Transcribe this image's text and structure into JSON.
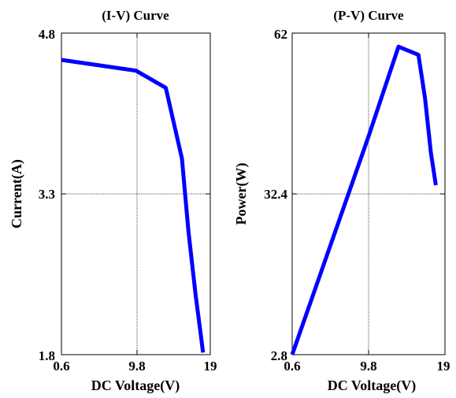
{
  "chart_data": [
    {
      "type": "line",
      "title": "(I-V) Curve",
      "xlabel": "DC Voltage(V)",
      "ylabel": "Current(A)",
      "xlim": [
        0.6,
        19
      ],
      "ylim": [
        1.8,
        4.8
      ],
      "xticks": [
        "0.6",
        "9.8",
        "19"
      ],
      "yticks": [
        "1.8",
        "3.3",
        "4.8"
      ],
      "grid": true,
      "line_color": "#0000ff",
      "series": [
        {
          "x": [
            0.6,
            9.8,
            13.5,
            15.5,
            16.3,
            17.2,
            17.8,
            18.1
          ],
          "y": [
            4.55,
            4.45,
            4.29,
            3.63,
            2.95,
            2.35,
            2.0,
            1.82
          ]
        }
      ]
    },
    {
      "type": "line",
      "title": "(P-V) Curve",
      "xlabel": "DC Voltage(V)",
      "ylabel": "Power(W)",
      "xlim": [
        0.6,
        19
      ],
      "ylim": [
        2.8,
        62
      ],
      "xticks": [
        "0.6",
        "9.8",
        "19"
      ],
      "yticks": [
        "2.8",
        "32.4",
        "62"
      ],
      "grid": true,
      "line_color": "#0000ff",
      "series": [
        {
          "x": [
            0.6,
            9.8,
            13.4,
            15.8,
            16.6,
            17.3,
            17.9
          ],
          "y": [
            2.8,
            43.0,
            59.5,
            58.0,
            50.0,
            40.0,
            34.0
          ]
        }
      ]
    }
  ]
}
